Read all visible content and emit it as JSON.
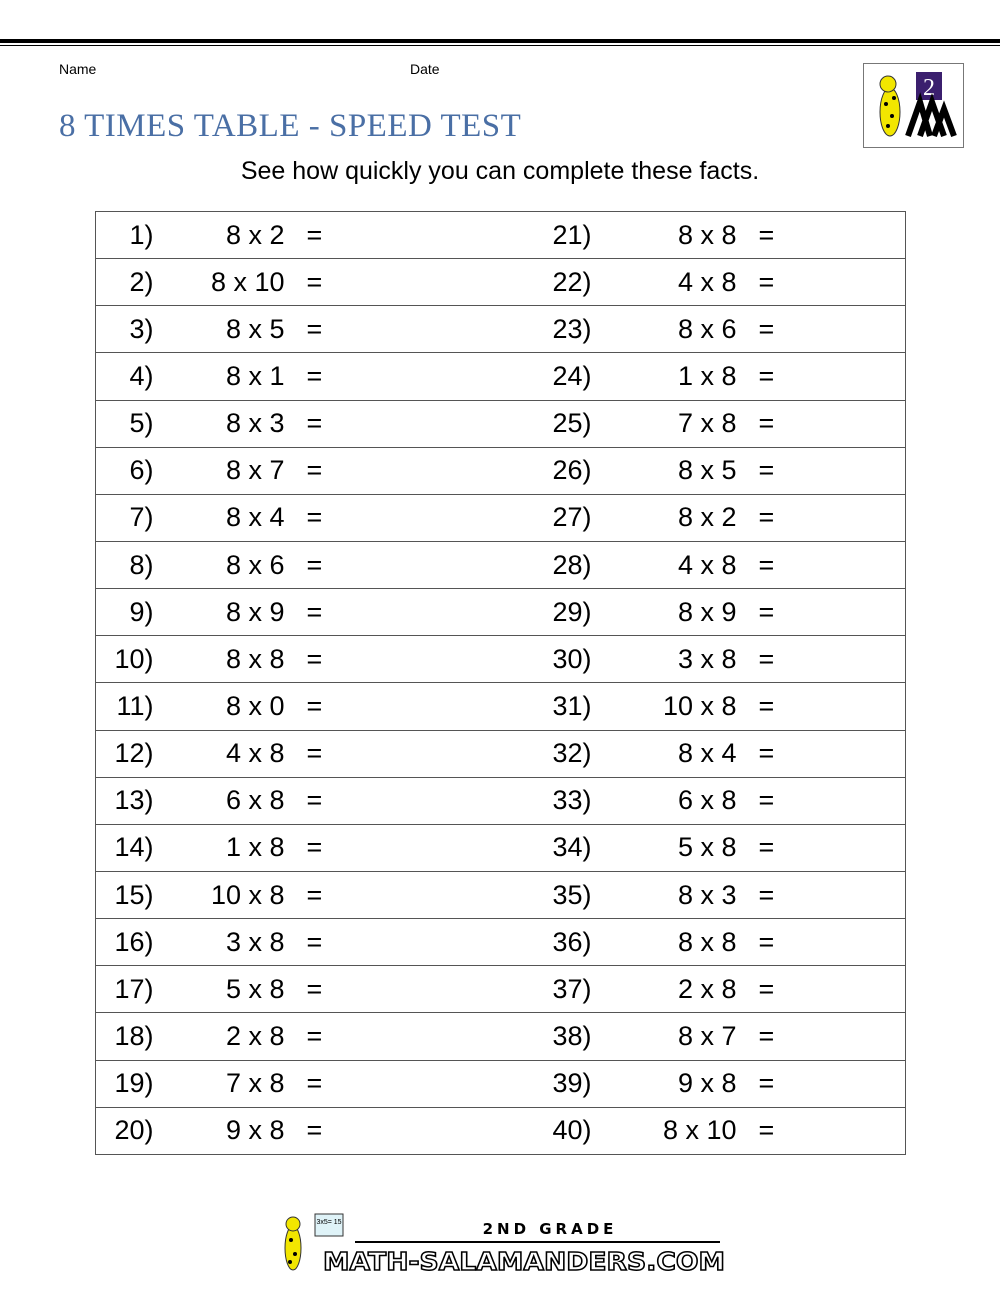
{
  "header": {
    "name_label": "Name",
    "date_label": "Date",
    "title": "8 TIMES TABLE - SPEED TEST",
    "subtitle": "See how quickly you can complete these facts.",
    "logo_text": "2"
  },
  "questions": [
    {
      "num": "1)",
      "expr": "8 x 2",
      "eq": "="
    },
    {
      "num": "2)",
      "expr": "8 x 10",
      "eq": "="
    },
    {
      "num": "3)",
      "expr": "8 x 5",
      "eq": "="
    },
    {
      "num": "4)",
      "expr": "8 x 1",
      "eq": "="
    },
    {
      "num": "5)",
      "expr": "8 x 3",
      "eq": "="
    },
    {
      "num": "6)",
      "expr": "8 x 7",
      "eq": "="
    },
    {
      "num": "7)",
      "expr": "8 x 4",
      "eq": "="
    },
    {
      "num": "8)",
      "expr": "8 x 6",
      "eq": "="
    },
    {
      "num": "9)",
      "expr": "8 x 9",
      "eq": "="
    },
    {
      "num": "10)",
      "expr": "8 x 8",
      "eq": "="
    },
    {
      "num": "11)",
      "expr": "8 x 0",
      "eq": "="
    },
    {
      "num": "12)",
      "expr": "4 x 8",
      "eq": "="
    },
    {
      "num": "13)",
      "expr": "6 x 8",
      "eq": "="
    },
    {
      "num": "14)",
      "expr": "1 x 8",
      "eq": "="
    },
    {
      "num": "15)",
      "expr": "10 x 8",
      "eq": "="
    },
    {
      "num": "16)",
      "expr": "3 x 8",
      "eq": "="
    },
    {
      "num": "17)",
      "expr": "5 x 8",
      "eq": "="
    },
    {
      "num": "18)",
      "expr": "2 x 8",
      "eq": "="
    },
    {
      "num": "19)",
      "expr": "7 x 8",
      "eq": "="
    },
    {
      "num": "20)",
      "expr": "9 x 8",
      "eq": "="
    },
    {
      "num": "21)",
      "expr": "8 x 8",
      "eq": "="
    },
    {
      "num": "22)",
      "expr": "4 x 8",
      "eq": "="
    },
    {
      "num": "23)",
      "expr": "8 x 6",
      "eq": "="
    },
    {
      "num": "24)",
      "expr": "1 x 8",
      "eq": "="
    },
    {
      "num": "25)",
      "expr": "7 x 8",
      "eq": "="
    },
    {
      "num": "26)",
      "expr": "8 x 5",
      "eq": "="
    },
    {
      "num": "27)",
      "expr": "8 x 2",
      "eq": "="
    },
    {
      "num": "28)",
      "expr": "4 x 8",
      "eq": "="
    },
    {
      "num": "29)",
      "expr": "8 x 9",
      "eq": "="
    },
    {
      "num": "30)",
      "expr": "3 x 8",
      "eq": "="
    },
    {
      "num": "31)",
      "expr": "10 x 8",
      "eq": "="
    },
    {
      "num": "32)",
      "expr": "8 x 4",
      "eq": "="
    },
    {
      "num": "33)",
      "expr": "6 x 8",
      "eq": "="
    },
    {
      "num": "34)",
      "expr": "5 x 8",
      "eq": "="
    },
    {
      "num": "35)",
      "expr": "8 x 3",
      "eq": "="
    },
    {
      "num": "36)",
      "expr": "8 x 8",
      "eq": "="
    },
    {
      "num": "37)",
      "expr": "2 x 8",
      "eq": "="
    },
    {
      "num": "38)",
      "expr": "8 x 7",
      "eq": "="
    },
    {
      "num": "39)",
      "expr": "9 x 8",
      "eq": "="
    },
    {
      "num": "40)",
      "expr": "8 x 10",
      "eq": "="
    }
  ],
  "footer": {
    "grade": "2ND GRADE",
    "site": "MATH-SALAMANDERS.COM",
    "board_text": "3x5= 15"
  },
  "colors": {
    "title": "#4a6fa5",
    "logo_board": "#3b1f6e",
    "salamander": "#f2e600"
  }
}
